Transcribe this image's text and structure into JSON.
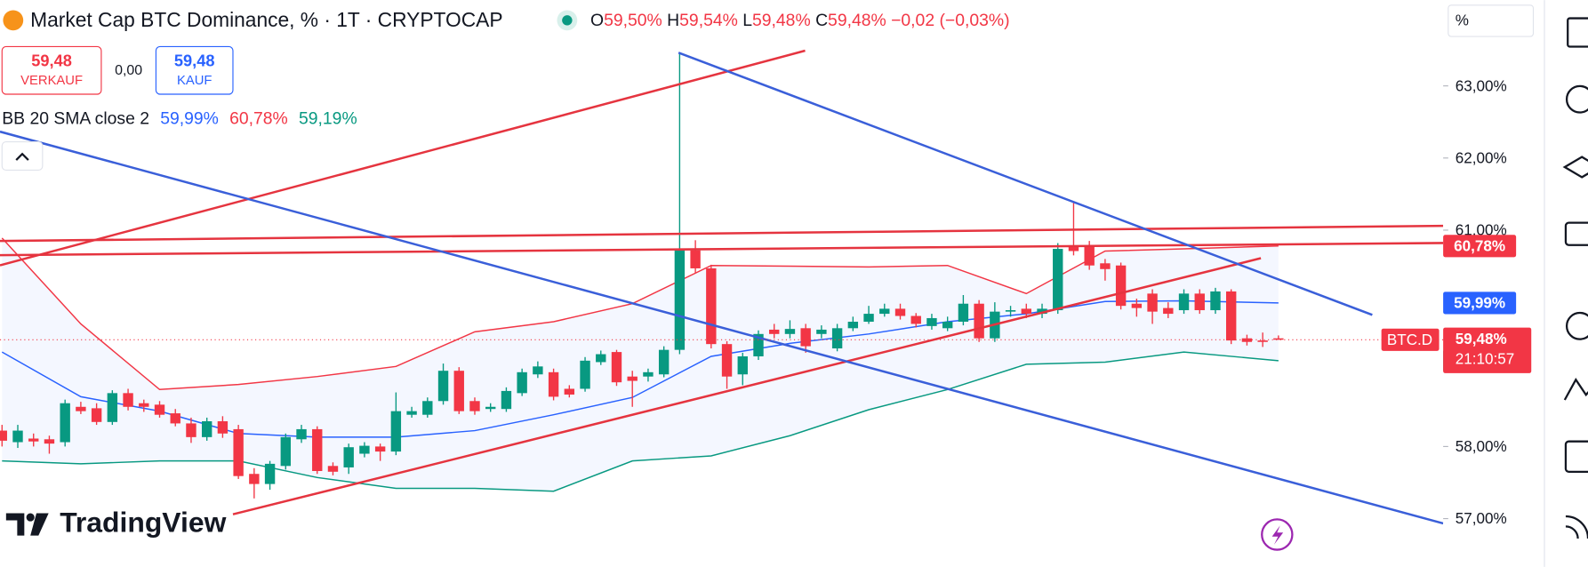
{
  "ui": {
    "title": "Market Cap BTC Dominance, % · 1T · CRYPTOCAP",
    "ohlc": [
      "O",
      "59,50%",
      "H",
      "59,54%",
      "L",
      "59,48%",
      "C",
      "59,48%",
      "−0,02 (−0,03%)"
    ],
    "sell_price": "59,48",
    "sell_label": "VERKAUF",
    "spread": "0,00",
    "buy_price": "59,48",
    "buy_label": "KAUF",
    "indicator": "BB 20 SMA close 2",
    "indicator_values": [
      "59,99%",
      "60,78%",
      "59,19%"
    ],
    "axis_unit": "%",
    "symbol": "BTC.D",
    "countdown": "21:10:57",
    "price_labels": {
      "upper": "60,78%",
      "basis": "59,99%",
      "last": "59,48%",
      "lower": "59,19%"
    },
    "brand": "TradingView"
  },
  "chart_data": {
    "type": "candlestick",
    "up_color": "#089981",
    "down_color": "#f23645",
    "ylim": [
      56.33,
      64.19
    ],
    "yticks": [
      {
        "value": 57,
        "label": "57,00%"
      },
      {
        "value": 58,
        "label": "58,00%"
      },
      {
        "value": 61,
        "label": "61,00%"
      },
      {
        "value": 62,
        "label": "62,00%"
      },
      {
        "value": 63,
        "label": "63,00%"
      }
    ],
    "open": [
      58.22,
      58.06,
      58.11,
      58.1,
      58.06,
      58.55,
      58.53,
      58.34,
      58.74,
      58.6,
      58.58,
      58.46,
      58.32,
      58.13,
      58.35,
      58.24,
      57.62,
      57.48,
      57.73,
      58.1,
      58.24,
      57.73,
      57.71,
      57.9,
      58.0,
      57.93,
      58.44,
      58.44,
      58.63,
      59.05,
      58.63,
      58.52,
      58.52,
      58.74,
      59.0,
      59.03,
      58.8,
      58.8,
      59.17,
      59.31,
      58.97,
      58.97,
      59.0,
      59.34,
      60.72,
      60.47,
      59.42,
      59.0,
      59.25,
      59.62,
      59.56,
      59.64,
      59.56,
      59.36,
      59.64,
      59.73,
      59.84,
      59.91,
      59.81,
      59.67,
      59.64,
      59.73,
      59.98,
      59.5,
      59.87,
      59.91,
      59.84,
      59.89,
      60.77,
      60.77,
      60.54,
      60.51,
      59.98,
      60.12,
      59.92,
      59.89,
      60.12,
      59.89,
      60.15,
      59.5,
      59.47,
      59.5
    ],
    "high": [
      58.3,
      58.3,
      58.18,
      58.15,
      58.65,
      58.62,
      58.6,
      58.78,
      58.8,
      58.65,
      58.63,
      58.52,
      58.4,
      58.4,
      58.42,
      58.3,
      57.7,
      57.8,
      58.18,
      58.3,
      58.28,
      57.78,
      58.04,
      58.06,
      58.04,
      58.75,
      58.55,
      58.68,
      59.15,
      59.1,
      58.68,
      58.6,
      58.82,
      59.08,
      59.18,
      59.08,
      58.85,
      59.24,
      59.33,
      59.34,
      59.05,
      59.08,
      59.39,
      63.46,
      60.86,
      60.52,
      59.46,
      59.3,
      59.61,
      59.7,
      59.75,
      59.7,
      59.68,
      59.7,
      59.8,
      59.95,
      59.98,
      59.98,
      59.85,
      59.84,
      59.8,
      60.1,
      60.03,
      60.0,
      59.95,
      59.98,
      59.98,
      60.82,
      61.38,
      60.85,
      60.6,
      60.55,
      60.05,
      60.18,
      60.0,
      60.18,
      60.18,
      60.2,
      60.18,
      59.55,
      59.58,
      59.54
    ],
    "low": [
      58.0,
      57.98,
      58.0,
      57.9,
      58.0,
      58.45,
      58.3,
      58.3,
      58.5,
      58.48,
      58.4,
      58.28,
      58.05,
      58.08,
      58.12,
      57.55,
      57.28,
      57.4,
      57.68,
      58.05,
      57.62,
      57.6,
      57.62,
      57.85,
      57.8,
      57.88,
      58.4,
      58.4,
      58.58,
      58.45,
      58.44,
      58.48,
      58.48,
      58.7,
      58.95,
      58.64,
      58.68,
      58.76,
      59.13,
      58.84,
      58.55,
      58.9,
      58.96,
      59.28,
      60.4,
      59.36,
      58.8,
      58.85,
      59.2,
      59.5,
      59.5,
      59.3,
      59.5,
      59.32,
      59.6,
      59.7,
      59.8,
      59.76,
      59.65,
      59.62,
      59.6,
      59.68,
      59.45,
      59.45,
      59.8,
      59.78,
      59.78,
      59.84,
      60.65,
      60.45,
      60.3,
      59.9,
      59.8,
      59.7,
      59.78,
      59.84,
      59.84,
      59.84,
      59.42,
      59.4,
      59.38,
      59.48
    ],
    "close": [
      58.08,
      58.22,
      58.07,
      58.04,
      58.6,
      58.49,
      58.34,
      58.74,
      58.55,
      58.55,
      58.44,
      58.32,
      58.13,
      58.35,
      58.18,
      57.59,
      57.48,
      57.76,
      58.13,
      58.24,
      57.66,
      57.65,
      57.99,
      58.01,
      57.93,
      58.49,
      58.49,
      58.63,
      59.05,
      58.49,
      58.49,
      58.55,
      58.77,
      59.03,
      59.11,
      58.69,
      58.72,
      59.19,
      59.28,
      58.89,
      58.91,
      59.03,
      59.34,
      60.72,
      60.47,
      59.42,
      58.97,
      59.25,
      59.56,
      59.56,
      59.63,
      59.39,
      59.62,
      59.64,
      59.73,
      59.84,
      59.91,
      59.81,
      59.7,
      59.78,
      59.73,
      59.98,
      59.5,
      59.87,
      59.89,
      59.84,
      59.91,
      60.74,
      60.71,
      60.51,
      60.46,
      59.95,
      59.92,
      59.87,
      59.84,
      60.12,
      59.89,
      60.15,
      59.47,
      59.45,
      59.45,
      59.48
    ],
    "bands": {
      "x": [
        0,
        5,
        10,
        15,
        20,
        25,
        30,
        35,
        40,
        45,
        50,
        55,
        60,
        65,
        70,
        75,
        81
      ],
      "basis": [
        59.31,
        58.69,
        58.49,
        58.18,
        58.13,
        58.13,
        58.22,
        58.44,
        58.68,
        59.25,
        59.43,
        59.56,
        59.73,
        59.84,
        60.01,
        60.02,
        59.99
      ],
      "upper": [
        60.89,
        59.7,
        58.79,
        58.86,
        58.97,
        59.11,
        59.59,
        59.73,
        59.98,
        60.51,
        60.5,
        60.49,
        60.51,
        60.12,
        60.71,
        60.74,
        60.78
      ],
      "lower": [
        57.8,
        57.76,
        57.8,
        57.8,
        57.57,
        57.42,
        57.42,
        57.38,
        57.8,
        57.87,
        58.15,
        58.51,
        58.79,
        59.14,
        59.17,
        59.31,
        59.19
      ],
      "basis_color": "#2962ff",
      "upper_color": "#f23645",
      "lower_color": "#089981"
    }
  }
}
